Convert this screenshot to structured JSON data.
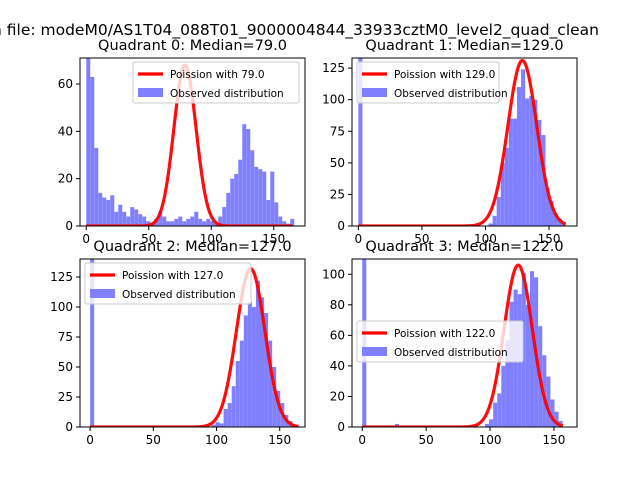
{
  "suptitle": "n file: modeM0/AS1T04_088T01_9000004844_33933cztM0_level2_quad_clean",
  "colors": {
    "hist": "#8080ff",
    "fit": "#ff0000",
    "axis": "#000000"
  },
  "chart_data": [
    {
      "type": "bar",
      "title": "Quadrant 0: Median=79.0",
      "xlim": [
        -5,
        175
      ],
      "ylim": [
        0,
        71
      ],
      "xticks": [
        0,
        50,
        100,
        150
      ],
      "yticks": [
        0,
        20,
        40,
        60
      ],
      "legend": {
        "position": "top-right",
        "entries": [
          "Poission with 79.0",
          "Observed distribution"
        ]
      },
      "bin_width": 3.2,
      "bins": [
        [
          0,
          71
        ],
        [
          3.2,
          63
        ],
        [
          6.4,
          33
        ],
        [
          9.6,
          14
        ],
        [
          12.8,
          12
        ],
        [
          16,
          11
        ],
        [
          19.2,
          13
        ],
        [
          22.4,
          6
        ],
        [
          25.6,
          9
        ],
        [
          28.8,
          6
        ],
        [
          32,
          4
        ],
        [
          35.2,
          8
        ],
        [
          38.4,
          7
        ],
        [
          41.6,
          5
        ],
        [
          44.8,
          4
        ],
        [
          48,
          2
        ],
        [
          51.2,
          1
        ],
        [
          54.4,
          3
        ],
        [
          57.6,
          6
        ],
        [
          60.8,
          4
        ],
        [
          64,
          2
        ],
        [
          67.2,
          2
        ],
        [
          70.4,
          3
        ],
        [
          73.6,
          4
        ],
        [
          76.8,
          2
        ],
        [
          80,
          3
        ],
        [
          83.2,
          4
        ],
        [
          86.4,
          6
        ],
        [
          89.6,
          3
        ],
        [
          92.8,
          2
        ],
        [
          96,
          3
        ],
        [
          99.2,
          2
        ],
        [
          102.4,
          1
        ],
        [
          105.6,
          4
        ],
        [
          108.8,
          8
        ],
        [
          112,
          14
        ],
        [
          115.2,
          20
        ],
        [
          118.4,
          22
        ],
        [
          121.6,
          28
        ],
        [
          124.8,
          43
        ],
        [
          128,
          41
        ],
        [
          131.2,
          32
        ],
        [
          134.4,
          25
        ],
        [
          137.6,
          24
        ],
        [
          140.8,
          23
        ],
        [
          144,
          11
        ],
        [
          147.2,
          23
        ],
        [
          150.4,
          10
        ],
        [
          153.6,
          4
        ],
        [
          156.8,
          2
        ],
        [
          160,
          1
        ],
        [
          163.2,
          3
        ]
      ],
      "fit": {
        "mean": 79,
        "peak": 68,
        "xmin": 0,
        "xmax": 165
      }
    },
    {
      "type": "bar",
      "title": "Quadrant 1: Median=129.0",
      "xlim": [
        -5,
        172
      ],
      "ylim": [
        0,
        133
      ],
      "xticks": [
        0,
        50,
        100,
        150
      ],
      "yticks": [
        0,
        25,
        50,
        75,
        100,
        125
      ],
      "legend": {
        "position": "top-left",
        "entries": [
          "Poission with 129.0",
          "Observed distribution"
        ]
      },
      "bin_width": 3.2,
      "bins": [
        [
          0,
          133
        ],
        [
          102.4,
          2
        ],
        [
          105.6,
          8
        ],
        [
          108.8,
          23
        ],
        [
          112,
          50
        ],
        [
          115.2,
          62
        ],
        [
          118.4,
          85
        ],
        [
          121.6,
          85
        ],
        [
          124.8,
          110
        ],
        [
          128,
          124
        ],
        [
          131.2,
          101
        ],
        [
          134.4,
          103
        ],
        [
          137.6,
          100
        ],
        [
          140.8,
          84
        ],
        [
          144,
          72
        ],
        [
          147.2,
          30
        ],
        [
          150.4,
          20
        ],
        [
          153.6,
          10
        ],
        [
          156.8,
          6
        ],
        [
          160,
          3
        ]
      ],
      "fit": {
        "mean": 129,
        "peak": 131,
        "xmin": 0,
        "xmax": 163
      }
    },
    {
      "type": "bar",
      "title": "Quadrant 2: Median=127.0",
      "xlim": [
        -8,
        170
      ],
      "ylim": [
        0,
        140
      ],
      "xticks": [
        0,
        50,
        100,
        150
      ],
      "yticks": [
        0,
        25,
        50,
        75,
        100,
        125
      ],
      "legend": {
        "position": "top-left",
        "entries": [
          "Poission with 127.0",
          "Observed distribution"
        ]
      },
      "bin_width": 3.2,
      "bins": [
        [
          0,
          140
        ],
        [
          86.4,
          1
        ],
        [
          96,
          2
        ],
        [
          99.2,
          4
        ],
        [
          102.4,
          3
        ],
        [
          105.6,
          15
        ],
        [
          108.8,
          20
        ],
        [
          112,
          34
        ],
        [
          115.2,
          55
        ],
        [
          118.4,
          72
        ],
        [
          121.6,
          93
        ],
        [
          124.8,
          104
        ],
        [
          128,
          100
        ],
        [
          131.2,
          122
        ],
        [
          134.4,
          108
        ],
        [
          137.6,
          95
        ],
        [
          140.8,
          72
        ],
        [
          144,
          50
        ],
        [
          147.2,
          30
        ],
        [
          150.4,
          20
        ],
        [
          153.6,
          10
        ],
        [
          156.8,
          5
        ],
        [
          160,
          2
        ]
      ],
      "fit": {
        "mean": 127,
        "peak": 132,
        "xmin": 0,
        "xmax": 165
      }
    },
    {
      "type": "bar",
      "title": "Quadrant 3: Median=122.0",
      "xlim": [
        -8,
        168
      ],
      "ylim": [
        0,
        110
      ],
      "xticks": [
        0,
        50,
        100,
        150
      ],
      "yticks": [
        0,
        20,
        40,
        60,
        80,
        100
      ],
      "legend": {
        "position": "center-left",
        "entries": [
          "Poission with 122.0",
          "Observed distribution"
        ]
      },
      "bin_width": 3.2,
      "bins": [
        [
          0,
          110
        ],
        [
          25.6,
          2
        ],
        [
          38.4,
          1
        ],
        [
          51.2,
          1
        ],
        [
          96,
          2
        ],
        [
          99.2,
          5
        ],
        [
          102.4,
          16
        ],
        [
          105.6,
          22
        ],
        [
          108.8,
          40
        ],
        [
          112,
          57
        ],
        [
          115.2,
          82
        ],
        [
          118.4,
          90
        ],
        [
          121.6,
          87
        ],
        [
          124.8,
          101
        ],
        [
          128,
          80
        ],
        [
          131.2,
          102
        ],
        [
          134.4,
          98
        ],
        [
          137.6,
          66
        ],
        [
          140.8,
          47
        ],
        [
          144,
          33
        ],
        [
          147.2,
          18
        ],
        [
          150.4,
          10
        ],
        [
          153.6,
          4
        ]
      ],
      "fit": {
        "mean": 122,
        "peak": 106,
        "xmin": 0,
        "xmax": 157
      }
    }
  ]
}
